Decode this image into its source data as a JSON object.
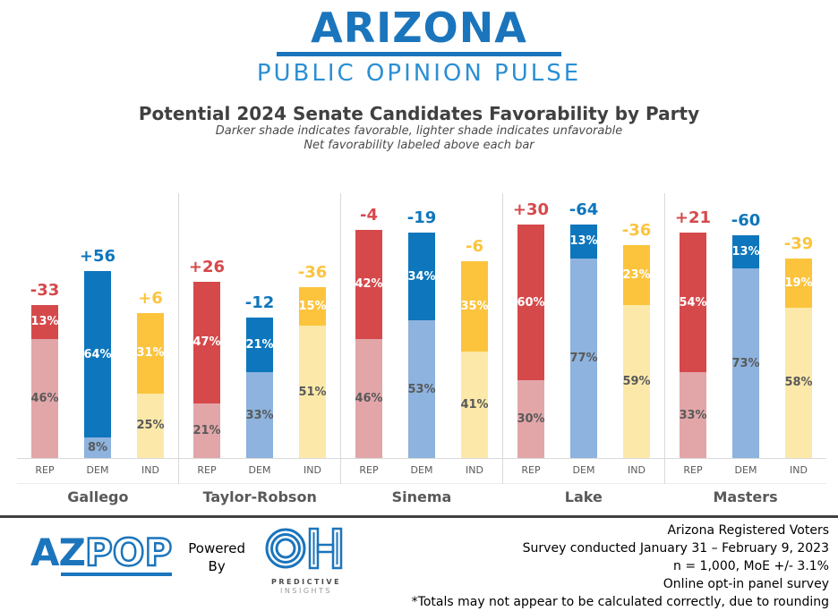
{
  "header": {
    "logo_title": "ARIZONA",
    "logo_subtitle": "PUBLIC OPINION PULSE"
  },
  "title": "Potential 2024 Senate Candidates Favorability by Party",
  "subtitle_line1": "Darker shade indicates favorable, lighter shade indicates unfavorable",
  "subtitle_line2": "Net favorability labeled above each bar",
  "chart_data": {
    "type": "bar",
    "stacked": true,
    "unit": "%",
    "ylim": [
      0,
      100
    ],
    "grid": false,
    "legend": "none (encoded by shade: darker = favorable, lighter = unfavorable; net favorability labeled above each bar)",
    "parties": [
      "REP",
      "DEM",
      "IND"
    ],
    "party_colors": {
      "REP": {
        "favorable": "#D6494B",
        "unfavorable": "#E2A6A9"
      },
      "DEM": {
        "favorable": "#0E76BC",
        "unfavorable": "#8DB3DE"
      },
      "IND": {
        "favorable": "#FCC43D",
        "unfavorable": "#FCE9A9"
      }
    },
    "unfavorable_label_color": "#595959",
    "groups": [
      {
        "candidate": "Gallego",
        "bars": [
          {
            "party": "REP",
            "net": "-33",
            "favorable": 13,
            "unfavorable": 46
          },
          {
            "party": "DEM",
            "net": "+56",
            "favorable": 64,
            "unfavorable": 8
          },
          {
            "party": "IND",
            "net": "+6",
            "favorable": 31,
            "unfavorable": 25
          }
        ]
      },
      {
        "candidate": "Taylor-Robson",
        "bars": [
          {
            "party": "REP",
            "net": "+26",
            "favorable": 47,
            "unfavorable": 21
          },
          {
            "party": "DEM",
            "net": "-12",
            "favorable": 21,
            "unfavorable": 33
          },
          {
            "party": "IND",
            "net": "-36",
            "favorable": 15,
            "unfavorable": 51
          }
        ]
      },
      {
        "candidate": "Sinema",
        "bars": [
          {
            "party": "REP",
            "net": "-4",
            "favorable": 42,
            "unfavorable": 46
          },
          {
            "party": "DEM",
            "net": "-19",
            "favorable": 34,
            "unfavorable": 53
          },
          {
            "party": "IND",
            "net": "-6",
            "favorable": 35,
            "unfavorable": 41
          }
        ]
      },
      {
        "candidate": "Lake",
        "bars": [
          {
            "party": "REP",
            "net": "+30",
            "favorable": 60,
            "unfavorable": 30
          },
          {
            "party": "DEM",
            "net": "-64",
            "favorable": 13,
            "unfavorable": 77
          },
          {
            "party": "IND",
            "net": "-36",
            "favorable": 23,
            "unfavorable": 59
          }
        ]
      },
      {
        "candidate": "Masters",
        "bars": [
          {
            "party": "REP",
            "net": "+21",
            "favorable": 54,
            "unfavorable": 33
          },
          {
            "party": "DEM",
            "net": "-60",
            "favorable": 13,
            "unfavorable": 73
          },
          {
            "party": "IND",
            "net": "-39",
            "favorable": 19,
            "unfavorable": 58
          }
        ]
      }
    ]
  },
  "footer": {
    "azpop_logo": {
      "az": "AZ",
      "pop": "POP"
    },
    "powered_by_line1": "Powered",
    "powered_by_line2": "By",
    "oh_logo": {
      "text": "OH",
      "sub1": "PREDICTIVE",
      "sub2": "INSIGHTS"
    },
    "notes": [
      "Arizona Registered Voters",
      "Survey conducted January 31 – February 9, 2023",
      "n = 1,000, MoE +/- 3.1%",
      "Online opt-in panel survey",
      "*Totals may not appear to be calculated correctly, due to rounding"
    ]
  },
  "colors": {
    "brand_blue": "#1B75BC",
    "brand_blue_light": "#2B8FD3",
    "title_gray": "#404040",
    "label_gray": "#595959",
    "axis_gray": "#D9D9D9"
  }
}
